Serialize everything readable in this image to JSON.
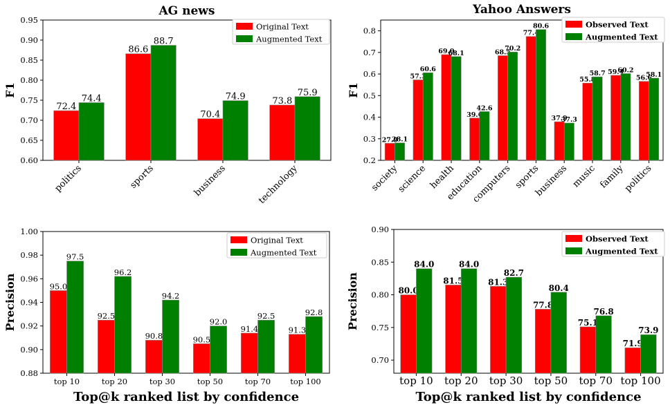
{
  "chart_data": [
    {
      "type": "bar",
      "title": "AG news",
      "xlabel": "",
      "ylabel": "F1",
      "ylim": [
        0.6,
        0.95
      ],
      "yticks": [
        "0.60",
        "0.65",
        "0.70",
        "0.75",
        "0.80",
        "0.85",
        "0.90",
        "0.95"
      ],
      "categories": [
        "politics",
        "sports",
        "business",
        "technology"
      ],
      "series": [
        {
          "name": "Original Text",
          "color": "#ff0000",
          "values": [
            0.724,
            0.866,
            0.704,
            0.738
          ],
          "labels": [
            "72.4",
            "86.6",
            "70.4",
            "73.8"
          ]
        },
        {
          "name": "Augmented Text",
          "color": "#008000",
          "values": [
            0.744,
            0.887,
            0.749,
            0.759
          ],
          "labels": [
            "74.4",
            "88.7",
            "74.9",
            "75.9"
          ]
        }
      ],
      "legend": "top-right"
    },
    {
      "type": "bar",
      "title": "Yahoo Answers",
      "xlabel": "",
      "ylabel": "F1",
      "ylim": [
        0.2,
        0.85
      ],
      "yticks": [
        "0.2",
        "0.3",
        "0.4",
        "0.5",
        "0.6",
        "0.7",
        "0.8"
      ],
      "categories": [
        "society",
        "science",
        "health",
        "education",
        "computers",
        "sports",
        "business",
        "music",
        "family",
        "politics"
      ],
      "series": [
        {
          "name": "Observed Text",
          "color": "#ff0000",
          "values": [
            0.279,
            0.573,
            0.69,
            0.396,
            0.685,
            0.774,
            0.379,
            0.558,
            0.594,
            0.566
          ],
          "labels": [
            "27.9",
            "57.3",
            "69.0",
            "39.6",
            "68.5",
            "77.4",
            "37.9",
            "55.8",
            "59.4",
            "56.6"
          ]
        },
        {
          "name": "Augmented Text",
          "color": "#008000",
          "values": [
            0.281,
            0.606,
            0.681,
            0.426,
            0.702,
            0.806,
            0.373,
            0.587,
            0.602,
            0.581
          ],
          "labels": [
            "28.1",
            "60.6",
            "68.1",
            "42.6",
            "70.2",
            "80.6",
            "37.3",
            "58.7",
            "60.2",
            "58.1"
          ]
        }
      ],
      "legend": "top-right"
    },
    {
      "type": "bar",
      "title": "",
      "xlabel": "Top@k ranked list by confidence",
      "ylabel": "Precision",
      "ylim": [
        0.88,
        1.0
      ],
      "yticks": [
        "0.88",
        "0.90",
        "0.92",
        "0.94",
        "0.96",
        "0.98",
        "1.00"
      ],
      "categories": [
        "top 10",
        "top 20",
        "top 30",
        "top 50",
        "top 70",
        "top 100"
      ],
      "series": [
        {
          "name": "Original Text",
          "color": "#ff0000",
          "values": [
            0.95,
            0.925,
            0.908,
            0.905,
            0.914,
            0.913
          ],
          "labels": [
            "95.0",
            "92.5",
            "90.8",
            "90.5",
            "91.4",
            "91.3"
          ]
        },
        {
          "name": "Augmented Text",
          "color": "#008000",
          "values": [
            0.975,
            0.962,
            0.942,
            0.92,
            0.925,
            0.928
          ],
          "labels": [
            "97.5",
            "96.2",
            "94.2",
            "92.0",
            "92.5",
            "92.8"
          ]
        }
      ],
      "legend": "top-right"
    },
    {
      "type": "bar",
      "title": "",
      "xlabel": "Top@k ranked list by confidence",
      "ylabel": "Precision",
      "ylim": [
        0.68,
        0.9
      ],
      "yticks": [
        "0.70",
        "0.75",
        "0.80",
        "0.85",
        "0.90"
      ],
      "categories": [
        "top 10",
        "top 20",
        "top 30",
        "top 50",
        "top 70",
        "top 100"
      ],
      "series": [
        {
          "name": "Observed Text",
          "color": "#ff0000",
          "values": [
            0.8,
            0.815,
            0.813,
            0.778,
            0.751,
            0.719
          ],
          "labels": [
            "80.0",
            "81.5",
            "81.3",
            "77.8",
            "75.1",
            "71.9"
          ]
        },
        {
          "name": "Augmented Text",
          "color": "#008000",
          "values": [
            0.84,
            0.84,
            0.827,
            0.804,
            0.768,
            0.739
          ],
          "labels": [
            "84.0",
            "84.0",
            "82.7",
            "80.4",
            "76.8",
            "73.9"
          ]
        }
      ],
      "legend": "top-right"
    }
  ]
}
